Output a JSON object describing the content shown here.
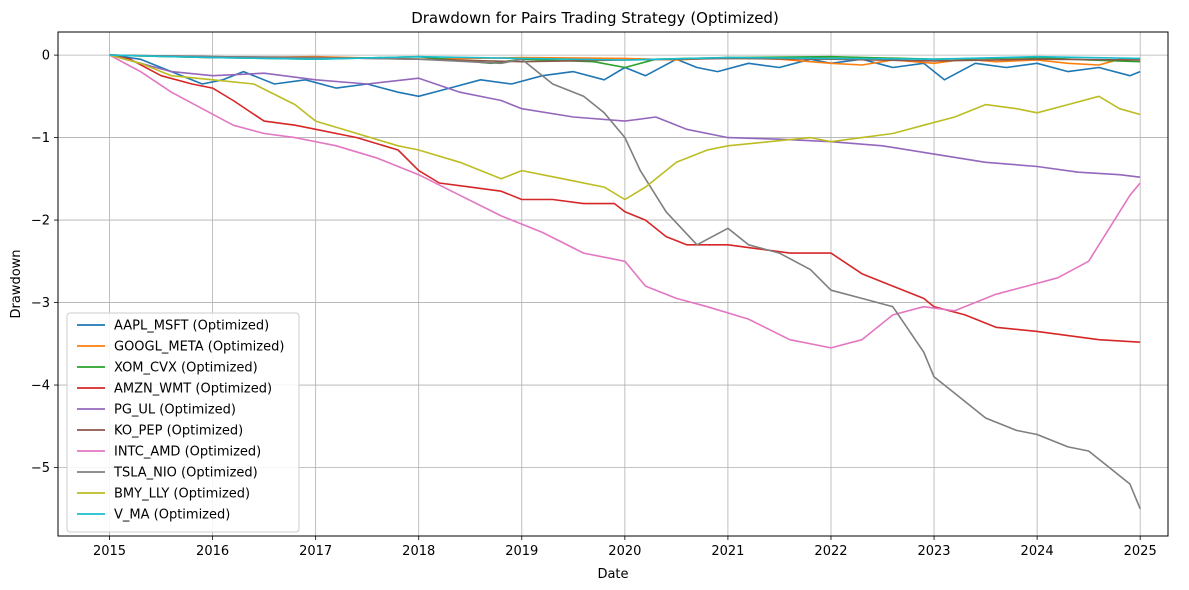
{
  "chart_data": {
    "type": "line",
    "title": "Drawdown for Pairs Trading Strategy (Optimized)",
    "xlabel": "Date",
    "ylabel": "Drawdown",
    "xlim": [
      2014.5,
      2025.27
    ],
    "ylim": [
      -5.83,
      0.28
    ],
    "xticks": [
      2015,
      2016,
      2017,
      2018,
      2019,
      2020,
      2021,
      2022,
      2023,
      2024,
      2025
    ],
    "xtick_labels": [
      "2015",
      "2016",
      "2017",
      "2018",
      "2019",
      "2020",
      "2021",
      "2022",
      "2023",
      "2024",
      "2025"
    ],
    "yticks": [
      0,
      -1,
      -2,
      -3,
      -4,
      -5
    ],
    "ytick_labels": [
      "0",
      "−1",
      "−2",
      "−3",
      "−4",
      "−5"
    ],
    "grid": true,
    "legend_position": "lower-left",
    "series": [
      {
        "name": "AAPL_MSFT (Optimized)",
        "color": "#1f77b4",
        "x": [
          2015.0,
          2015.3,
          2015.6,
          2015.9,
          2016.1,
          2016.3,
          2016.6,
          2016.9,
          2017.2,
          2017.5,
          2017.8,
          2018.0,
          2018.3,
          2018.6,
          2018.9,
          2019.2,
          2019.5,
          2019.8,
          2020.0,
          2020.2,
          2020.5,
          2020.7,
          2020.9,
          2021.2,
          2021.5,
          2021.8,
          2022.0,
          2022.3,
          2022.6,
          2022.9,
          2023.1,
          2023.4,
          2023.7,
          2024.0,
          2024.3,
          2024.6,
          2024.9,
          2025.0
        ],
        "y": [
          0,
          -0.05,
          -0.2,
          -0.35,
          -0.3,
          -0.2,
          -0.35,
          -0.3,
          -0.4,
          -0.35,
          -0.45,
          -0.5,
          -0.4,
          -0.3,
          -0.35,
          -0.25,
          -0.2,
          -0.3,
          -0.15,
          -0.25,
          -0.05,
          -0.15,
          -0.2,
          -0.1,
          -0.15,
          -0.05,
          -0.1,
          -0.05,
          -0.15,
          -0.1,
          -0.3,
          -0.1,
          -0.15,
          -0.1,
          -0.2,
          -0.15,
          -0.25,
          -0.2
        ]
      },
      {
        "name": "GOOGL_META (Optimized)",
        "color": "#ff7f0e",
        "x": [
          2015.0,
          2016.0,
          2017.0,
          2018.0,
          2019.0,
          2020.0,
          2020.5,
          2021.0,
          2021.5,
          2022.0,
          2022.3,
          2022.6,
          2023.0,
          2023.3,
          2023.6,
          2024.0,
          2024.3,
          2024.6,
          2024.8,
          2025.0
        ],
        "y": [
          0,
          -0.03,
          -0.02,
          -0.05,
          -0.03,
          -0.04,
          -0.06,
          -0.03,
          -0.05,
          -0.1,
          -0.12,
          -0.06,
          -0.1,
          -0.05,
          -0.08,
          -0.06,
          -0.1,
          -0.12,
          -0.05,
          -0.05
        ]
      },
      {
        "name": "XOM_CVX (Optimized)",
        "color": "#2ca02c",
        "x": [
          2015.0,
          2016.0,
          2017.0,
          2018.0,
          2018.7,
          2019.0,
          2019.7,
          2020.0,
          2020.3,
          2021.0,
          2022.0,
          2023.0,
          2024.0,
          2024.5,
          2025.0
        ],
        "y": [
          0,
          -0.03,
          -0.05,
          -0.02,
          -0.1,
          -0.05,
          -0.08,
          -0.15,
          -0.05,
          -0.03,
          -0.02,
          -0.05,
          -0.03,
          -0.06,
          -0.08
        ]
      },
      {
        "name": "AMZN_WMT (Optimized)",
        "color": "#d62728",
        "x": [
          2015.0,
          2015.2,
          2015.5,
          2015.8,
          2016.0,
          2016.2,
          2016.5,
          2016.8,
          2017.0,
          2017.4,
          2017.8,
          2018.0,
          2018.2,
          2018.5,
          2018.8,
          2019.0,
          2019.3,
          2019.6,
          2019.9,
          2020.0,
          2020.2,
          2020.4,
          2020.6,
          2021.0,
          2021.3,
          2021.6,
          2022.0,
          2022.3,
          2022.6,
          2022.9,
          2023.0,
          2023.3,
          2023.6,
          2024.0,
          2024.3,
          2024.6,
          2025.0
        ],
        "y": [
          0,
          -0.05,
          -0.25,
          -0.35,
          -0.4,
          -0.55,
          -0.8,
          -0.85,
          -0.9,
          -1.0,
          -1.15,
          -1.4,
          -1.55,
          -1.6,
          -1.65,
          -1.75,
          -1.75,
          -1.8,
          -1.8,
          -1.9,
          -2.0,
          -2.2,
          -2.3,
          -2.3,
          -2.35,
          -2.4,
          -2.4,
          -2.65,
          -2.8,
          -2.95,
          -3.05,
          -3.15,
          -3.3,
          -3.35,
          -3.4,
          -3.45,
          -3.48
        ]
      },
      {
        "name": "PG_UL (Optimized)",
        "color": "#9467bd",
        "x": [
          2015.0,
          2015.3,
          2015.6,
          2016.0,
          2016.5,
          2017.0,
          2017.5,
          2018.0,
          2018.4,
          2018.8,
          2019.0,
          2019.5,
          2020.0,
          2020.3,
          2020.6,
          2021.0,
          2021.5,
          2022.0,
          2022.5,
          2023.0,
          2023.5,
          2024.0,
          2024.4,
          2024.8,
          2025.0
        ],
        "y": [
          0,
          -0.1,
          -0.2,
          -0.25,
          -0.22,
          -0.3,
          -0.35,
          -0.28,
          -0.45,
          -0.55,
          -0.65,
          -0.75,
          -0.8,
          -0.75,
          -0.9,
          -1.0,
          -1.02,
          -1.05,
          -1.1,
          -1.2,
          -1.3,
          -1.35,
          -1.42,
          -1.45,
          -1.48
        ]
      },
      {
        "name": "KO_PEP (Optimized)",
        "color": "#8c564b",
        "x": [
          2015.0,
          2016.0,
          2017.0,
          2018.0,
          2019.0,
          2020.0,
          2021.0,
          2022.0,
          2023.0,
          2024.0,
          2025.0
        ],
        "y": [
          0,
          -0.02,
          -0.03,
          -0.05,
          -0.08,
          -0.06,
          -0.04,
          -0.05,
          -0.07,
          -0.05,
          -0.06
        ]
      },
      {
        "name": "INTC_AMD (Optimized)",
        "color": "#e377c2",
        "x": [
          2015.0,
          2015.3,
          2015.6,
          2015.9,
          2016.2,
          2016.5,
          2016.8,
          2017.2,
          2017.6,
          2018.0,
          2018.4,
          2018.8,
          2019.2,
          2019.6,
          2020.0,
          2020.2,
          2020.5,
          2020.8,
          2021.2,
          2021.6,
          2022.0,
          2022.3,
          2022.6,
          2022.9,
          2023.2,
          2023.6,
          2023.9,
          2024.2,
          2024.5,
          2024.7,
          2024.9,
          2025.0
        ],
        "y": [
          0,
          -0.2,
          -0.45,
          -0.65,
          -0.85,
          -0.95,
          -1.0,
          -1.1,
          -1.25,
          -1.45,
          -1.7,
          -1.95,
          -2.15,
          -2.4,
          -2.5,
          -2.8,
          -2.95,
          -3.05,
          -3.2,
          -3.45,
          -3.55,
          -3.45,
          -3.15,
          -3.05,
          -3.1,
          -2.9,
          -2.8,
          -2.7,
          -2.5,
          -2.1,
          -1.7,
          -1.55
        ]
      },
      {
        "name": "TSLA_NIO (Optimized)",
        "color": "#7f7f7f",
        "x": [
          2015.0,
          2016.0,
          2017.0,
          2018.0,
          2018.8,
          2019.0,
          2019.3,
          2019.6,
          2019.8,
          2020.0,
          2020.15,
          2020.25,
          2020.4,
          2020.55,
          2020.7,
          2021.0,
          2021.2,
          2021.5,
          2021.8,
          2022.0,
          2022.3,
          2022.6,
          2022.9,
          2023.0,
          2023.2,
          2023.5,
          2023.8,
          2024.0,
          2024.3,
          2024.5,
          2024.7,
          2024.9,
          2025.0
        ],
        "y": [
          0,
          -0.02,
          -0.03,
          -0.05,
          -0.1,
          -0.05,
          -0.35,
          -0.5,
          -0.7,
          -1.0,
          -1.4,
          -1.6,
          -1.9,
          -2.1,
          -2.3,
          -2.1,
          -2.3,
          -2.4,
          -2.6,
          -2.85,
          -2.95,
          -3.05,
          -3.6,
          -3.9,
          -4.1,
          -4.4,
          -4.55,
          -4.6,
          -4.75,
          -4.8,
          -5.0,
          -5.2,
          -5.5
        ]
      },
      {
        "name": "BMY_LLY (Optimized)",
        "color": "#bcbd22",
        "x": [
          2015.0,
          2015.3,
          2015.6,
          2016.0,
          2016.4,
          2016.8,
          2017.0,
          2017.4,
          2017.8,
          2018.0,
          2018.4,
          2018.8,
          2019.0,
          2019.4,
          2019.8,
          2020.0,
          2020.2,
          2020.5,
          2020.8,
          2021.0,
          2021.4,
          2021.8,
          2022.0,
          2022.3,
          2022.6,
          2022.9,
          2023.2,
          2023.5,
          2023.8,
          2024.0,
          2024.3,
          2024.6,
          2024.8,
          2025.0
        ],
        "y": [
          0,
          -0.1,
          -0.25,
          -0.3,
          -0.35,
          -0.6,
          -0.8,
          -0.95,
          -1.1,
          -1.15,
          -1.3,
          -1.5,
          -1.4,
          -1.5,
          -1.6,
          -1.75,
          -1.6,
          -1.3,
          -1.15,
          -1.1,
          -1.05,
          -1.0,
          -1.05,
          -1.0,
          -0.95,
          -0.85,
          -0.75,
          -0.6,
          -0.65,
          -0.7,
          -0.6,
          -0.5,
          -0.65,
          -0.72
        ]
      },
      {
        "name": "V_MA (Optimized)",
        "color": "#17becf",
        "x": [
          2015.0,
          2016.0,
          2017.0,
          2018.0,
          2019.0,
          2020.0,
          2021.0,
          2022.0,
          2023.0,
          2024.0,
          2025.0
        ],
        "y": [
          0,
          -0.03,
          -0.05,
          -0.02,
          -0.04,
          -0.06,
          -0.03,
          -0.04,
          -0.05,
          -0.02,
          -0.04
        ]
      }
    ]
  }
}
